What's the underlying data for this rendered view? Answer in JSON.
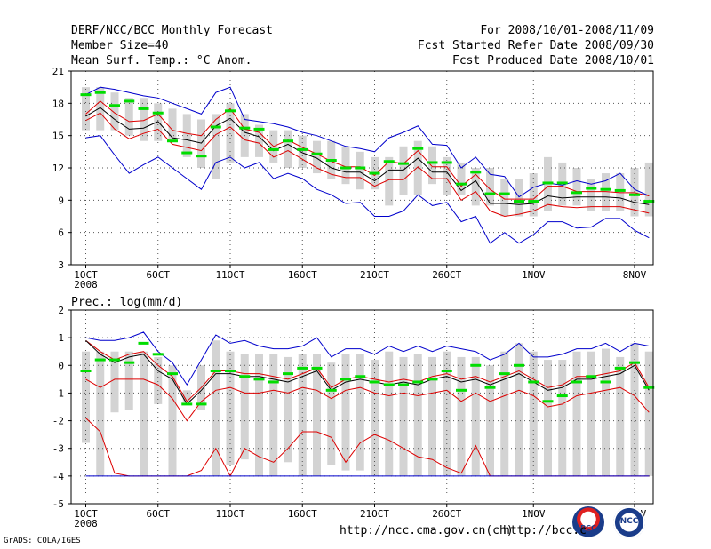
{
  "header": {
    "title": "DERF/NCC/BCC Monthly Forecast",
    "member_size": "Member Size=40",
    "variable": "Mean Surf. Temp.: °C Anom.",
    "period": "For 2008/10/01-2008/11/09",
    "started": "Fcst Started Refer Date 2008/09/30",
    "produced": "Fcst Produced Date 2008/10/01"
  },
  "footer": {
    "url1": "http://ncc.cma.gov.cn(ch)",
    "url2": "http://bcc.c",
    "grads": "GrADS: COLA/IGES",
    "logo_bcc": "BCC",
    "logo_ncc": "NCC"
  },
  "colors": {
    "ens_max": "#0000cc",
    "ens_min": "#0000cc",
    "ens_inner": "#dd0000",
    "mean": "#000000",
    "obs": "#00dd00",
    "box": "#d3d3d3"
  },
  "chart_data": [
    {
      "type": "line",
      "title": "Mean Surf. Temp.: °C Anom.",
      "xlabel": "",
      "ylabel": "",
      "ylim": [
        3,
        21
      ],
      "yticks": [
        3,
        6,
        9,
        12,
        15,
        18,
        21
      ],
      "xticks": [
        {
          "day": 1,
          "label": "1OCT"
        },
        {
          "day": 6,
          "label": "6OCT"
        },
        {
          "day": 11,
          "label": "11OCT"
        },
        {
          "day": 16,
          "label": "16OCT"
        },
        {
          "day": 21,
          "label": "21OCT"
        },
        {
          "day": 26,
          "label": "26OCT"
        },
        {
          "day": 32,
          "label": "1NOV"
        },
        {
          "day": 39,
          "label": "8NOV"
        }
      ],
      "xsub": {
        "day": 1,
        "label": "2008"
      },
      "grid": true,
      "box_low": [
        15.5,
        15.5,
        15.5,
        15,
        14.5,
        14.5,
        14.5,
        13,
        12,
        11,
        12.5,
        13,
        13,
        12.5,
        12,
        12,
        11.5,
        11,
        10.5,
        10,
        10,
        8.5,
        9.5,
        9.5,
        10.5,
        9.5,
        9.5,
        8.5,
        8.5,
        7.5,
        7.5,
        7.5,
        8,
        8.5,
        8.5,
        8,
        8,
        8,
        7.5,
        7.5
      ],
      "box_high": [
        19.5,
        19.5,
        19,
        18.5,
        18.5,
        18,
        17.5,
        17,
        16.5,
        17,
        18,
        17,
        16,
        15.5,
        15.5,
        15,
        14.5,
        14.5,
        14,
        13.5,
        13,
        13,
        14,
        14.5,
        14,
        13,
        12.5,
        12,
        12,
        11,
        11,
        11.5,
        13,
        12.5,
        12,
        11,
        11.5,
        11.5,
        12,
        12.5
      ],
      "series": [
        {
          "name": "ensemble max",
          "color": "#0000cc",
          "values": [
            18.8,
            19.5,
            19.3,
            19.0,
            18.7,
            18.5,
            18.0,
            17.5,
            17.0,
            19.0,
            19.5,
            16.5,
            16.3,
            16.1,
            15.8,
            15.3,
            15.0,
            14.5,
            14.0,
            13.8,
            13.5,
            14.8,
            15.3,
            15.9,
            14.2,
            14.1,
            12.0,
            13.0,
            11.4,
            11.2,
            9.3,
            10.2,
            10.6,
            10.4,
            10.8,
            10.5,
            10.8,
            11.5,
            10.0,
            9.4
          ]
        },
        {
          "name": "ensemble upper",
          "color": "#dd0000",
          "values": [
            17.0,
            18.2,
            17.1,
            16.3,
            16.4,
            17.0,
            15.5,
            15.2,
            15.0,
            16.5,
            17.5,
            15.6,
            15.3,
            14.0,
            14.6,
            13.9,
            13.3,
            12.6,
            12.1,
            12.1,
            11.3,
            12.6,
            12.4,
            13.6,
            12.1,
            12.1,
            10.3,
            11.4,
            10.0,
            9.1,
            9.1,
            9.1,
            10.3,
            10.3,
            9.8,
            9.8,
            9.8,
            9.7,
            9.7,
            9.4
          ]
        },
        {
          "name": "ensemble mean",
          "color": "#000000",
          "values": [
            16.8,
            17.6,
            16.5,
            15.6,
            15.7,
            16.3,
            14.8,
            14.6,
            14.3,
            15.9,
            16.6,
            15.3,
            14.9,
            13.6,
            14.2,
            13.4,
            12.9,
            12.0,
            11.6,
            11.6,
            10.8,
            11.8,
            11.8,
            12.9,
            11.6,
            11.6,
            9.9,
            10.8,
            8.7,
            8.7,
            8.6,
            8.7,
            9.4,
            9.2,
            9.3,
            9.3,
            9.3,
            9.2,
            8.8,
            8.6
          ]
        },
        {
          "name": "ensemble lower",
          "color": "#dd0000",
          "values": [
            16.4,
            17.1,
            15.6,
            14.7,
            15.2,
            15.6,
            14.2,
            13.9,
            13.6,
            15.1,
            15.8,
            14.6,
            14.3,
            13.0,
            13.6,
            12.8,
            12.0,
            11.4,
            11.1,
            11.1,
            10.3,
            10.9,
            10.9,
            12.1,
            11.0,
            11.0,
            9.0,
            9.8,
            8.0,
            7.5,
            7.7,
            8.0,
            8.6,
            8.4,
            8.3,
            8.4,
            8.4,
            8.4,
            8.1,
            7.8
          ]
        },
        {
          "name": "ensemble min",
          "color": "#0000cc",
          "values": [
            14.8,
            15.0,
            13.2,
            11.5,
            12.3,
            13.0,
            12.0,
            11.0,
            10.0,
            12.5,
            13.0,
            12.0,
            12.5,
            11.0,
            11.5,
            11.0,
            10.0,
            9.5,
            8.7,
            8.8,
            7.5,
            7.5,
            8.0,
            9.5,
            8.5,
            8.8,
            7.0,
            7.5,
            5.0,
            6.0,
            5.0,
            5.8,
            7.0,
            7.0,
            6.4,
            6.5,
            7.3,
            7.3,
            6.2,
            5.5
          ]
        },
        {
          "name": "observed",
          "color": "#00dd00",
          "values": [
            18.8,
            19.0,
            17.8,
            18.2,
            17.5,
            17.1,
            14.5,
            13.4,
            13.1,
            15.8,
            17.3,
            15.7,
            15.6,
            13.7,
            14.5,
            13.7,
            13.3,
            12.7,
            12.0,
            12.0,
            11.5,
            12.6,
            12.4,
            13.8,
            12.5,
            12.5,
            10.5,
            11.6,
            9.6,
            9.6,
            8.9,
            8.9,
            10.6,
            10.6,
            9.7,
            10.1,
            10.0,
            9.9,
            9.5,
            8.9
          ]
        }
      ]
    },
    {
      "type": "line",
      "title": "Prec.: log(mm/d)",
      "xlabel": "",
      "ylabel": "",
      "ylim": [
        -5,
        2
      ],
      "yticks": [
        -5,
        -4,
        -3,
        -2,
        -1,
        0,
        1,
        2
      ],
      "xticks": [
        {
          "day": 1,
          "label": "1OCT"
        },
        {
          "day": 6,
          "label": "6OCT"
        },
        {
          "day": 11,
          "label": "11OCT"
        },
        {
          "day": 16,
          "label": "16OCT"
        },
        {
          "day": 21,
          "label": "21OCT"
        },
        {
          "day": 26,
          "label": "26OCT"
        },
        {
          "day": 32,
          "label": "1NOV"
        },
        {
          "day": 39,
          "label": "8NOV"
        }
      ],
      "xsub": {
        "day": 1,
        "label": "2008"
      },
      "grid": true,
      "box_low": [
        -2.8,
        -4,
        -1.7,
        -1.6,
        -4,
        -1.4,
        -4,
        -1.3,
        -1.6,
        -4,
        -3.6,
        -3.4,
        -4,
        -4,
        -3.5,
        -4,
        -4,
        -3.6,
        -3.8,
        -3.8,
        -4,
        -4,
        -4,
        -4,
        -4,
        -4,
        -4,
        -4,
        -4,
        -4,
        -4,
        -4,
        -4,
        -4,
        -4,
        -4,
        -4,
        -4,
        -4,
        -4
      ],
      "box_high": [
        0.5,
        0.5,
        0.5,
        0.5,
        0.5,
        0.3,
        0,
        -0.9,
        0,
        0.9,
        0.5,
        0.4,
        0.4,
        0.4,
        0.3,
        0.4,
        0.4,
        0.1,
        0.4,
        0.4,
        0.2,
        0.5,
        0.3,
        0.4,
        0.3,
        0.5,
        0.3,
        0.3,
        0,
        0.5,
        0.8,
        0.5,
        0.2,
        0.2,
        0.5,
        0.5,
        0.6,
        0.3,
        0.8,
        0.5
      ],
      "series": [
        {
          "name": "ensemble max",
          "color": "#0000cc",
          "values": [
            1.0,
            0.9,
            0.9,
            1.0,
            1.2,
            0.5,
            0.1,
            -0.7,
            0.2,
            1.1,
            0.8,
            0.9,
            0.7,
            0.6,
            0.6,
            0.7,
            1.0,
            0.3,
            0.6,
            0.6,
            0.4,
            0.7,
            0.5,
            0.7,
            0.5,
            0.7,
            0.6,
            0.5,
            0.2,
            0.4,
            0.8,
            0.3,
            0.3,
            0.4,
            0.6,
            0.6,
            0.8,
            0.5,
            0.8,
            0.7
          ]
        },
        {
          "name": "ensemble upper",
          "color": "#dd0000",
          "values": [
            0.9,
            0.5,
            0.2,
            0.4,
            0.5,
            0.0,
            -0.4,
            -1.3,
            -0.8,
            -0.2,
            -0.2,
            -0.3,
            -0.3,
            -0.4,
            -0.5,
            -0.3,
            -0.1,
            -0.8,
            -0.5,
            -0.4,
            -0.5,
            -0.6,
            -0.5,
            -0.6,
            -0.4,
            -0.3,
            -0.5,
            -0.4,
            -0.6,
            -0.4,
            -0.2,
            -0.5,
            -0.8,
            -0.7,
            -0.4,
            -0.4,
            -0.3,
            -0.2,
            0.1,
            -0.8
          ]
        },
        {
          "name": "ensemble mean",
          "color": "#000000",
          "values": [
            0.9,
            0.4,
            0.1,
            0.3,
            0.4,
            -0.2,
            -0.5,
            -1.4,
            -0.9,
            -0.3,
            -0.3,
            -0.4,
            -0.4,
            -0.5,
            -0.6,
            -0.4,
            -0.2,
            -0.9,
            -0.6,
            -0.5,
            -0.6,
            -0.7,
            -0.6,
            -0.7,
            -0.5,
            -0.4,
            -0.6,
            -0.5,
            -0.7,
            -0.5,
            -0.3,
            -0.6,
            -0.9,
            -0.8,
            -0.5,
            -0.5,
            -0.4,
            -0.3,
            0.0,
            -0.9
          ]
        },
        {
          "name": "ensemble lower",
          "color": "#dd0000",
          "values": [
            -0.5,
            -0.8,
            -0.5,
            -0.5,
            -0.5,
            -0.7,
            -1.2,
            -2.0,
            -1.3,
            -0.9,
            -0.8,
            -1.0,
            -1.0,
            -0.9,
            -1.0,
            -0.8,
            -0.9,
            -1.2,
            -0.9,
            -0.8,
            -1.0,
            -1.1,
            -1.0,
            -1.1,
            -1.0,
            -0.9,
            -1.3,
            -1.0,
            -1.3,
            -1.1,
            -0.9,
            -1.1,
            -1.5,
            -1.4,
            -1.1,
            -1.0,
            -0.9,
            -0.8,
            -1.1,
            -1.7
          ]
        },
        {
          "name": "ensemble min",
          "color": "#dd0000",
          "values": [
            -1.9,
            -2.4,
            -3.9,
            -4.0,
            -4.0,
            -4.0,
            -4.0,
            -4.0,
            -3.8,
            -3.0,
            -4.0,
            -3.0,
            -3.3,
            -3.5,
            -3.0,
            -2.4,
            -2.4,
            -2.6,
            -3.5,
            -2.8,
            -2.5,
            -2.7,
            -3.0,
            -3.3,
            -3.4,
            -3.7,
            -3.9,
            -2.9,
            -4.0,
            -4.0,
            -4.0,
            -4.0,
            -4.0,
            -4.0,
            -4.0,
            -4.0,
            -4.0,
            -4.0,
            -4.0,
            -4.0
          ]
        },
        {
          "name": "floor",
          "color": "#0000cc",
          "values": [
            -4,
            -4,
            -4,
            -4,
            -4,
            -4,
            -4,
            -4,
            -4,
            -4,
            -4,
            -4,
            -4,
            -4,
            -4,
            -4,
            -4,
            -4,
            -4,
            -4,
            -4,
            -4,
            -4,
            -4,
            -4,
            -4,
            -4,
            -4,
            -4,
            -4,
            -4,
            -4,
            -4,
            -4,
            -4,
            -4,
            -4,
            -4,
            -4,
            -4
          ]
        },
        {
          "name": "observed",
          "color": "#00dd00",
          "values": [
            -0.2,
            0.2,
            0.2,
            0.1,
            0.8,
            0.4,
            -0.3,
            -1.4,
            -1.4,
            -0.2,
            -0.2,
            -0.4,
            -0.5,
            -0.6,
            -0.3,
            -0.1,
            -0.1,
            -0.9,
            -0.5,
            -0.4,
            -0.6,
            -0.7,
            -0.7,
            -0.6,
            -0.5,
            -0.2,
            -0.9,
            0.0,
            -0.8,
            -0.3,
            0.0,
            -0.6,
            -1.3,
            -1.1,
            -0.6,
            -0.4,
            -0.6,
            -0.1,
            0.1,
            -0.8
          ]
        }
      ]
    }
  ]
}
